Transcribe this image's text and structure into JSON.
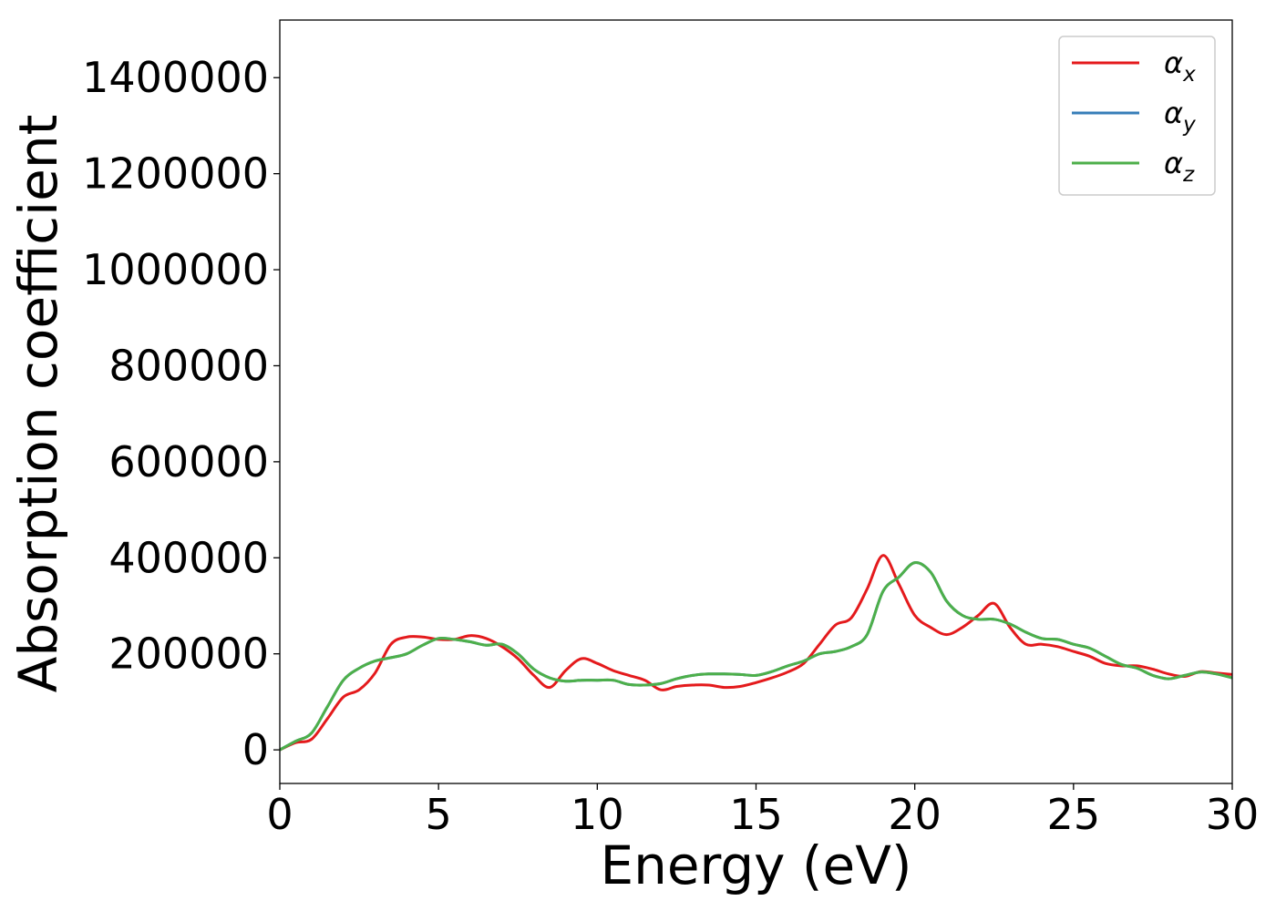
{
  "chart_data": {
    "type": "line",
    "title": "",
    "xlabel": "Energy (eV)",
    "ylabel": "Absorption coefficient",
    "xlim": [
      0,
      30
    ],
    "ylim": [
      -70000,
      1520000
    ],
    "xticks": [
      0,
      5,
      10,
      15,
      20,
      25,
      30
    ],
    "yticks": [
      0,
      200000,
      400000,
      600000,
      800000,
      1000000,
      1200000,
      1400000
    ],
    "grid": false,
    "legend_position": "top-right",
    "x": [
      0,
      0.5,
      1,
      1.5,
      2,
      2.5,
      3,
      3.5,
      4,
      4.5,
      5,
      5.5,
      6,
      6.5,
      7,
      7.5,
      8,
      8.5,
      9,
      9.5,
      10,
      10.5,
      11,
      11.5,
      12,
      12.5,
      13,
      13.5,
      14,
      14.5,
      15,
      15.5,
      16,
      16.5,
      17,
      17.5,
      18,
      18.5,
      19,
      19.5,
      20,
      20.5,
      21,
      21.5,
      22,
      22.5,
      23,
      23.5,
      24,
      24.5,
      25,
      25.5,
      26,
      26.5,
      27,
      27.5,
      28,
      28.5,
      29,
      29.5,
      30
    ],
    "series": [
      {
        "name": "α_x",
        "color": "#e41a1c",
        "values": [
          0,
          15000,
          22000,
          65000,
          110000,
          125000,
          160000,
          220000,
          235000,
          235000,
          230000,
          230000,
          238000,
          232000,
          215000,
          190000,
          155000,
          130000,
          165000,
          190000,
          180000,
          165000,
          155000,
          145000,
          125000,
          132000,
          135000,
          135000,
          130000,
          132000,
          140000,
          150000,
          162000,
          180000,
          220000,
          260000,
          275000,
          335000,
          405000,
          345000,
          280000,
          255000,
          240000,
          255000,
          280000,
          305000,
          255000,
          220000,
          220000,
          215000,
          205000,
          195000,
          180000,
          175000,
          175000,
          168000,
          158000,
          153000,
          163000,
          160000,
          157000
        ]
      },
      {
        "name": "α_y",
        "color": "#377eb8",
        "values": [
          0,
          18000,
          35000,
          90000,
          145000,
          170000,
          185000,
          192000,
          200000,
          218000,
          232000,
          230000,
          225000,
          218000,
          220000,
          200000,
          168000,
          150000,
          143000,
          145000,
          145000,
          145000,
          136000,
          135000,
          138000,
          148000,
          155000,
          158000,
          158000,
          157000,
          155000,
          163000,
          175000,
          185000,
          200000,
          205000,
          215000,
          240000,
          330000,
          360000,
          390000,
          370000,
          310000,
          280000,
          272000,
          272000,
          262000,
          245000,
          232000,
          230000,
          220000,
          212000,
          195000,
          178000,
          170000,
          155000,
          148000,
          155000,
          162000,
          158000,
          150000
        ]
      },
      {
        "name": "α_z",
        "color": "#4daf4a",
        "values": [
          0,
          18000,
          35000,
          90000,
          145000,
          170000,
          185000,
          192000,
          200000,
          218000,
          232000,
          230000,
          225000,
          218000,
          220000,
          200000,
          168000,
          150000,
          143000,
          145000,
          145000,
          145000,
          136000,
          135000,
          138000,
          148000,
          155000,
          158000,
          158000,
          157000,
          155000,
          163000,
          175000,
          185000,
          200000,
          205000,
          215000,
          240000,
          330000,
          360000,
          390000,
          370000,
          310000,
          280000,
          272000,
          272000,
          262000,
          245000,
          232000,
          230000,
          220000,
          212000,
          195000,
          178000,
          170000,
          155000,
          148000,
          155000,
          162000,
          158000,
          150000
        ]
      }
    ],
    "legend": [
      {
        "base": "α",
        "sub": "x",
        "color": "#e41a1c"
      },
      {
        "base": "α",
        "sub": "y",
        "color": "#377eb8"
      },
      {
        "base": "α",
        "sub": "z",
        "color": "#4daf4a"
      }
    ]
  }
}
